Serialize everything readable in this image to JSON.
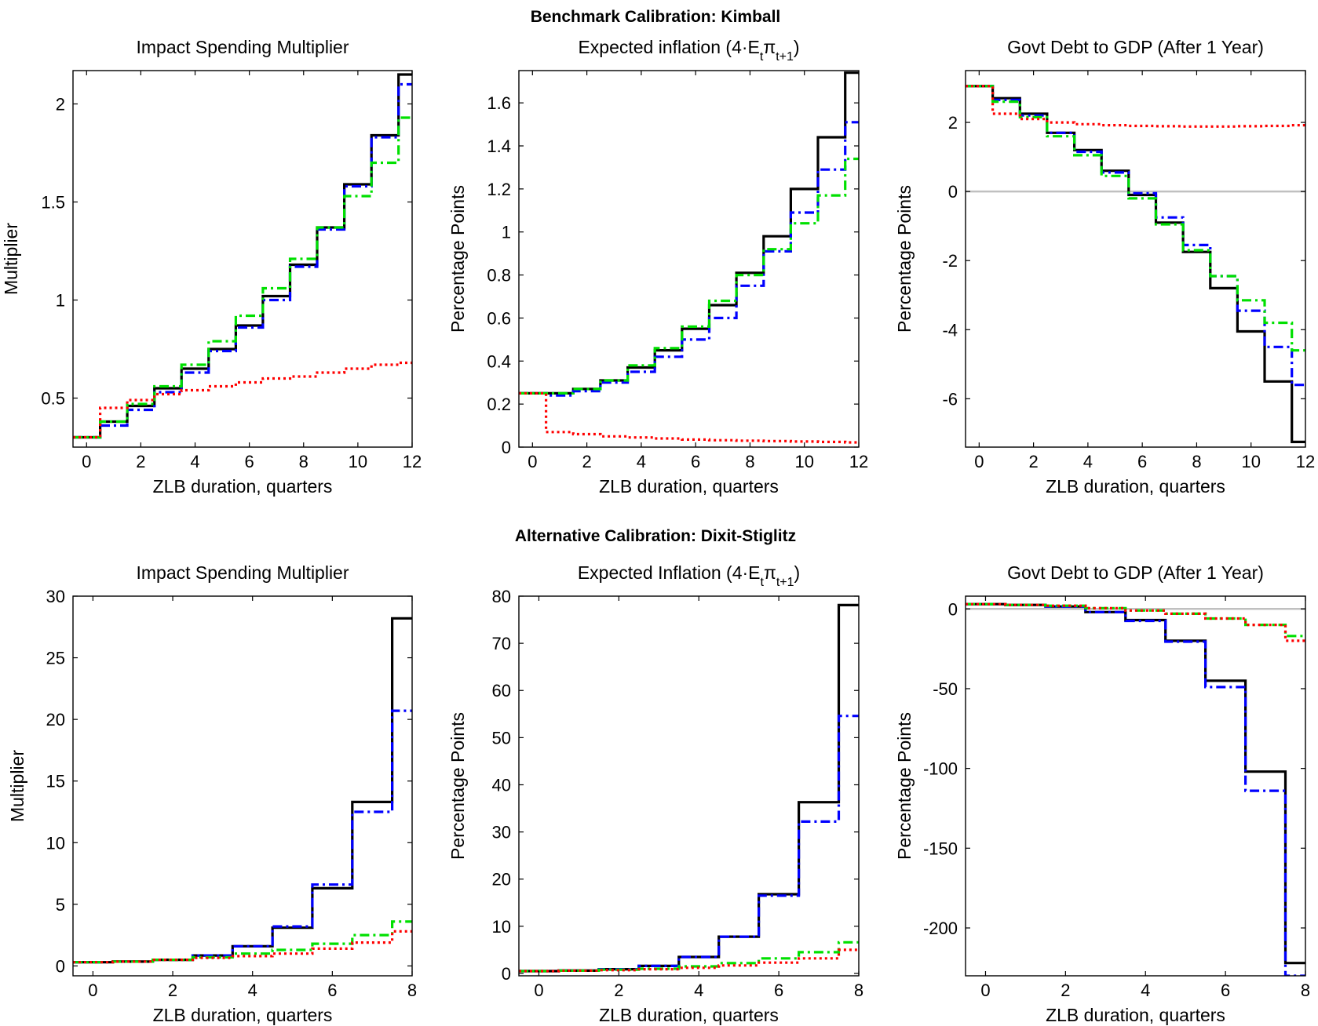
{
  "section_titles": [
    "Benchmark Calibration: Kimball",
    "Alternative Calibration: Dixit-Stiglitz"
  ],
  "chart_data": [
    {
      "type": "line",
      "step": true,
      "title": "Impact Spending Multiplier",
      "xlabel": "ZLB duration, quarters",
      "ylabel": "Multiplier",
      "xlim": [
        -0.5,
        12
      ],
      "ylim": [
        0.25,
        2.17
      ],
      "xticks": [
        0,
        2,
        4,
        6,
        8,
        10,
        12
      ],
      "yticks": [
        0.5,
        1,
        1.5,
        2
      ],
      "x": [
        0,
        1,
        2,
        3,
        4,
        5,
        6,
        7,
        8,
        9,
        10,
        11,
        12
      ],
      "series": [
        {
          "color": "#000000",
          "dash": "solid",
          "values": [
            0.3,
            0.38,
            0.46,
            0.55,
            0.65,
            0.75,
            0.87,
            1.02,
            1.18,
            1.37,
            1.59,
            1.84,
            2.15
          ]
        },
        {
          "color": "#0000ff",
          "dash": "dashdot",
          "values": [
            0.3,
            0.36,
            0.44,
            0.53,
            0.63,
            0.74,
            0.86,
            1.0,
            1.17,
            1.36,
            1.58,
            1.83,
            2.1
          ]
        },
        {
          "color": "#00e000",
          "dash": "dashdot",
          "values": [
            0.3,
            0.38,
            0.47,
            0.56,
            0.67,
            0.79,
            0.92,
            1.06,
            1.21,
            1.37,
            1.53,
            1.7,
            1.93
          ]
        },
        {
          "color": "#ff0000",
          "dash": "dotted",
          "values": [
            0.3,
            0.45,
            0.49,
            0.52,
            0.54,
            0.56,
            0.58,
            0.6,
            0.61,
            0.63,
            0.65,
            0.67,
            0.68
          ]
        }
      ]
    },
    {
      "type": "line",
      "step": true,
      "title": "Expected inflation (4·E",
      "title_sub": "t",
      "title_pi": "π",
      "title_sub2": "t+1",
      "title_close": ")",
      "xlabel": "ZLB duration, quarters",
      "ylabel": "Percentage Points",
      "xlim": [
        -0.5,
        12
      ],
      "ylim": [
        0,
        1.75
      ],
      "xticks": [
        0,
        2,
        4,
        6,
        8,
        10,
        12
      ],
      "yticks": [
        0,
        0.2,
        0.4,
        0.6,
        0.8,
        1,
        1.2,
        1.4,
        1.6
      ],
      "x": [
        0,
        1,
        2,
        3,
        4,
        5,
        6,
        7,
        8,
        9,
        10,
        11,
        12
      ],
      "series": [
        {
          "color": "#000000",
          "dash": "solid",
          "values": [
            0.25,
            0.25,
            0.27,
            0.31,
            0.37,
            0.45,
            0.55,
            0.66,
            0.81,
            0.98,
            1.2,
            1.44,
            1.74
          ]
        },
        {
          "color": "#0000ff",
          "dash": "dashdot",
          "values": [
            0.25,
            0.24,
            0.26,
            0.3,
            0.35,
            0.42,
            0.5,
            0.6,
            0.75,
            0.91,
            1.09,
            1.29,
            1.51
          ]
        },
        {
          "color": "#00e000",
          "dash": "dashdot",
          "values": [
            0.25,
            0.25,
            0.27,
            0.31,
            0.38,
            0.46,
            0.56,
            0.68,
            0.8,
            0.92,
            1.04,
            1.17,
            1.34
          ]
        },
        {
          "color": "#ff0000",
          "dash": "dotted",
          "values": [
            0.25,
            0.07,
            0.06,
            0.05,
            0.045,
            0.04,
            0.035,
            0.032,
            0.03,
            0.028,
            0.026,
            0.024,
            0.022
          ]
        }
      ]
    },
    {
      "type": "line",
      "step": true,
      "title": "Govt Debt to GDP (After 1 Year)",
      "xlabel": "ZLB duration, quarters",
      "ylabel": "Percentage Points",
      "xlim": [
        -0.5,
        12
      ],
      "ylim": [
        -7.4,
        3.5
      ],
      "xticks": [
        0,
        2,
        4,
        6,
        8,
        10,
        12
      ],
      "yticks": [
        -6,
        -4,
        -2,
        0,
        2
      ],
      "zero_line": true,
      "x": [
        0,
        1,
        2,
        3,
        4,
        5,
        6,
        7,
        8,
        9,
        10,
        11,
        12
      ],
      "series": [
        {
          "color": "#000000",
          "dash": "solid",
          "values": [
            3.05,
            2.7,
            2.25,
            1.7,
            1.2,
            0.6,
            -0.1,
            -0.9,
            -1.75,
            -2.8,
            -4.05,
            -5.5,
            -7.25
          ]
        },
        {
          "color": "#0000ff",
          "dash": "dashdot",
          "values": [
            3.05,
            2.65,
            2.2,
            1.7,
            1.15,
            0.55,
            -0.05,
            -0.75,
            -1.55,
            -2.45,
            -3.45,
            -4.5,
            -5.6
          ]
        },
        {
          "color": "#00e000",
          "dash": "dashdot",
          "values": [
            3.05,
            2.6,
            2.15,
            1.6,
            1.05,
            0.45,
            -0.2,
            -0.95,
            -1.7,
            -2.45,
            -3.15,
            -3.8,
            -4.6
          ]
        },
        {
          "color": "#ff0000",
          "dash": "dotted",
          "values": [
            3.05,
            2.25,
            2.1,
            2.0,
            1.95,
            1.92,
            1.9,
            1.89,
            1.88,
            1.88,
            1.89,
            1.9,
            1.92
          ]
        }
      ]
    },
    {
      "type": "line",
      "step": true,
      "title": "Impact Spending Multiplier",
      "xlabel": "ZLB duration, quarters",
      "ylabel": "Multiplier",
      "xlim": [
        -0.5,
        8
      ],
      "ylim": [
        -0.8,
        30
      ],
      "xticks": [
        0,
        2,
        4,
        6,
        8
      ],
      "yticks": [
        0,
        5,
        10,
        15,
        20,
        25,
        30
      ],
      "x": [
        0,
        1,
        2,
        3,
        4,
        5,
        6,
        7,
        8
      ],
      "series": [
        {
          "color": "#000000",
          "dash": "solid",
          "values": [
            0.3,
            0.35,
            0.5,
            0.85,
            1.6,
            3.1,
            6.3,
            13.3,
            28.2
          ]
        },
        {
          "color": "#0000ff",
          "dash": "dashdot",
          "values": [
            0.3,
            0.35,
            0.5,
            0.85,
            1.6,
            3.2,
            6.6,
            12.5,
            20.7
          ]
        },
        {
          "color": "#00e000",
          "dash": "dashdot",
          "values": [
            0.3,
            0.35,
            0.5,
            0.7,
            1.0,
            1.3,
            1.8,
            2.5,
            3.6
          ]
        },
        {
          "color": "#ff0000",
          "dash": "dotted",
          "values": [
            0.3,
            0.35,
            0.5,
            0.65,
            0.8,
            1.0,
            1.4,
            1.9,
            2.8
          ]
        }
      ]
    },
    {
      "type": "line",
      "step": true,
      "title": "Expected Inflation (4·E",
      "title_sub": "t",
      "title_pi": "π",
      "title_sub2": "t+1",
      "title_close": ")",
      "xlabel": "ZLB duration, quarters",
      "ylabel": "Percentage Points",
      "xlim": [
        -0.5,
        8
      ],
      "ylim": [
        -0.5,
        80
      ],
      "xticks": [
        0,
        2,
        4,
        6,
        8
      ],
      "yticks": [
        0,
        10,
        20,
        30,
        40,
        50,
        60,
        70,
        80
      ],
      "x": [
        0,
        1,
        2,
        3,
        4,
        5,
        6,
        7,
        8
      ],
      "series": [
        {
          "color": "#000000",
          "dash": "solid",
          "values": [
            0.5,
            0.6,
            0.9,
            1.6,
            3.5,
            7.8,
            16.8,
            36.3,
            78.1
          ]
        },
        {
          "color": "#0000ff",
          "dash": "dashdot",
          "values": [
            0.5,
            0.6,
            0.9,
            1.6,
            3.5,
            7.8,
            16.5,
            32.2,
            54.6
          ]
        },
        {
          "color": "#00e000",
          "dash": "dashdot",
          "values": [
            0.5,
            0.6,
            0.8,
            1.0,
            1.5,
            2.2,
            3.2,
            4.5,
            6.6
          ]
        },
        {
          "color": "#ff0000",
          "dash": "dotted",
          "values": [
            0.5,
            0.6,
            0.7,
            0.9,
            1.2,
            1.7,
            2.3,
            3.2,
            5.0
          ]
        }
      ]
    },
    {
      "type": "line",
      "step": true,
      "title": "Govt Debt to GDP (After 1 Year)",
      "xlabel": "ZLB duration, quarters",
      "ylabel": "Percentage Points",
      "xlim": [
        -0.5,
        8
      ],
      "ylim": [
        -230,
        8
      ],
      "xticks": [
        0,
        2,
        4,
        6,
        8
      ],
      "yticks": [
        -200,
        -150,
        -100,
        -50,
        0
      ],
      "zero_line": true,
      "x": [
        0,
        1,
        2,
        3,
        4,
        5,
        6,
        7,
        8
      ],
      "series": [
        {
          "color": "#000000",
          "dash": "solid",
          "values": [
            3,
            2.5,
            1.5,
            -2,
            -7,
            -20,
            -45,
            -102,
            -222
          ]
        },
        {
          "color": "#0000ff",
          "dash": "dashdot",
          "values": [
            3,
            2.5,
            1.5,
            -2,
            -7.5,
            -20.5,
            -49,
            -114,
            -230
          ]
        },
        {
          "color": "#00e000",
          "dash": "dashdot",
          "values": [
            3,
            2.5,
            2,
            0.5,
            -1,
            -3,
            -6,
            -10,
            -17
          ]
        },
        {
          "color": "#ff0000",
          "dash": "dotted",
          "values": [
            3,
            2.5,
            2,
            0.5,
            -1,
            -3,
            -6,
            -10,
            -20
          ]
        }
      ]
    }
  ]
}
